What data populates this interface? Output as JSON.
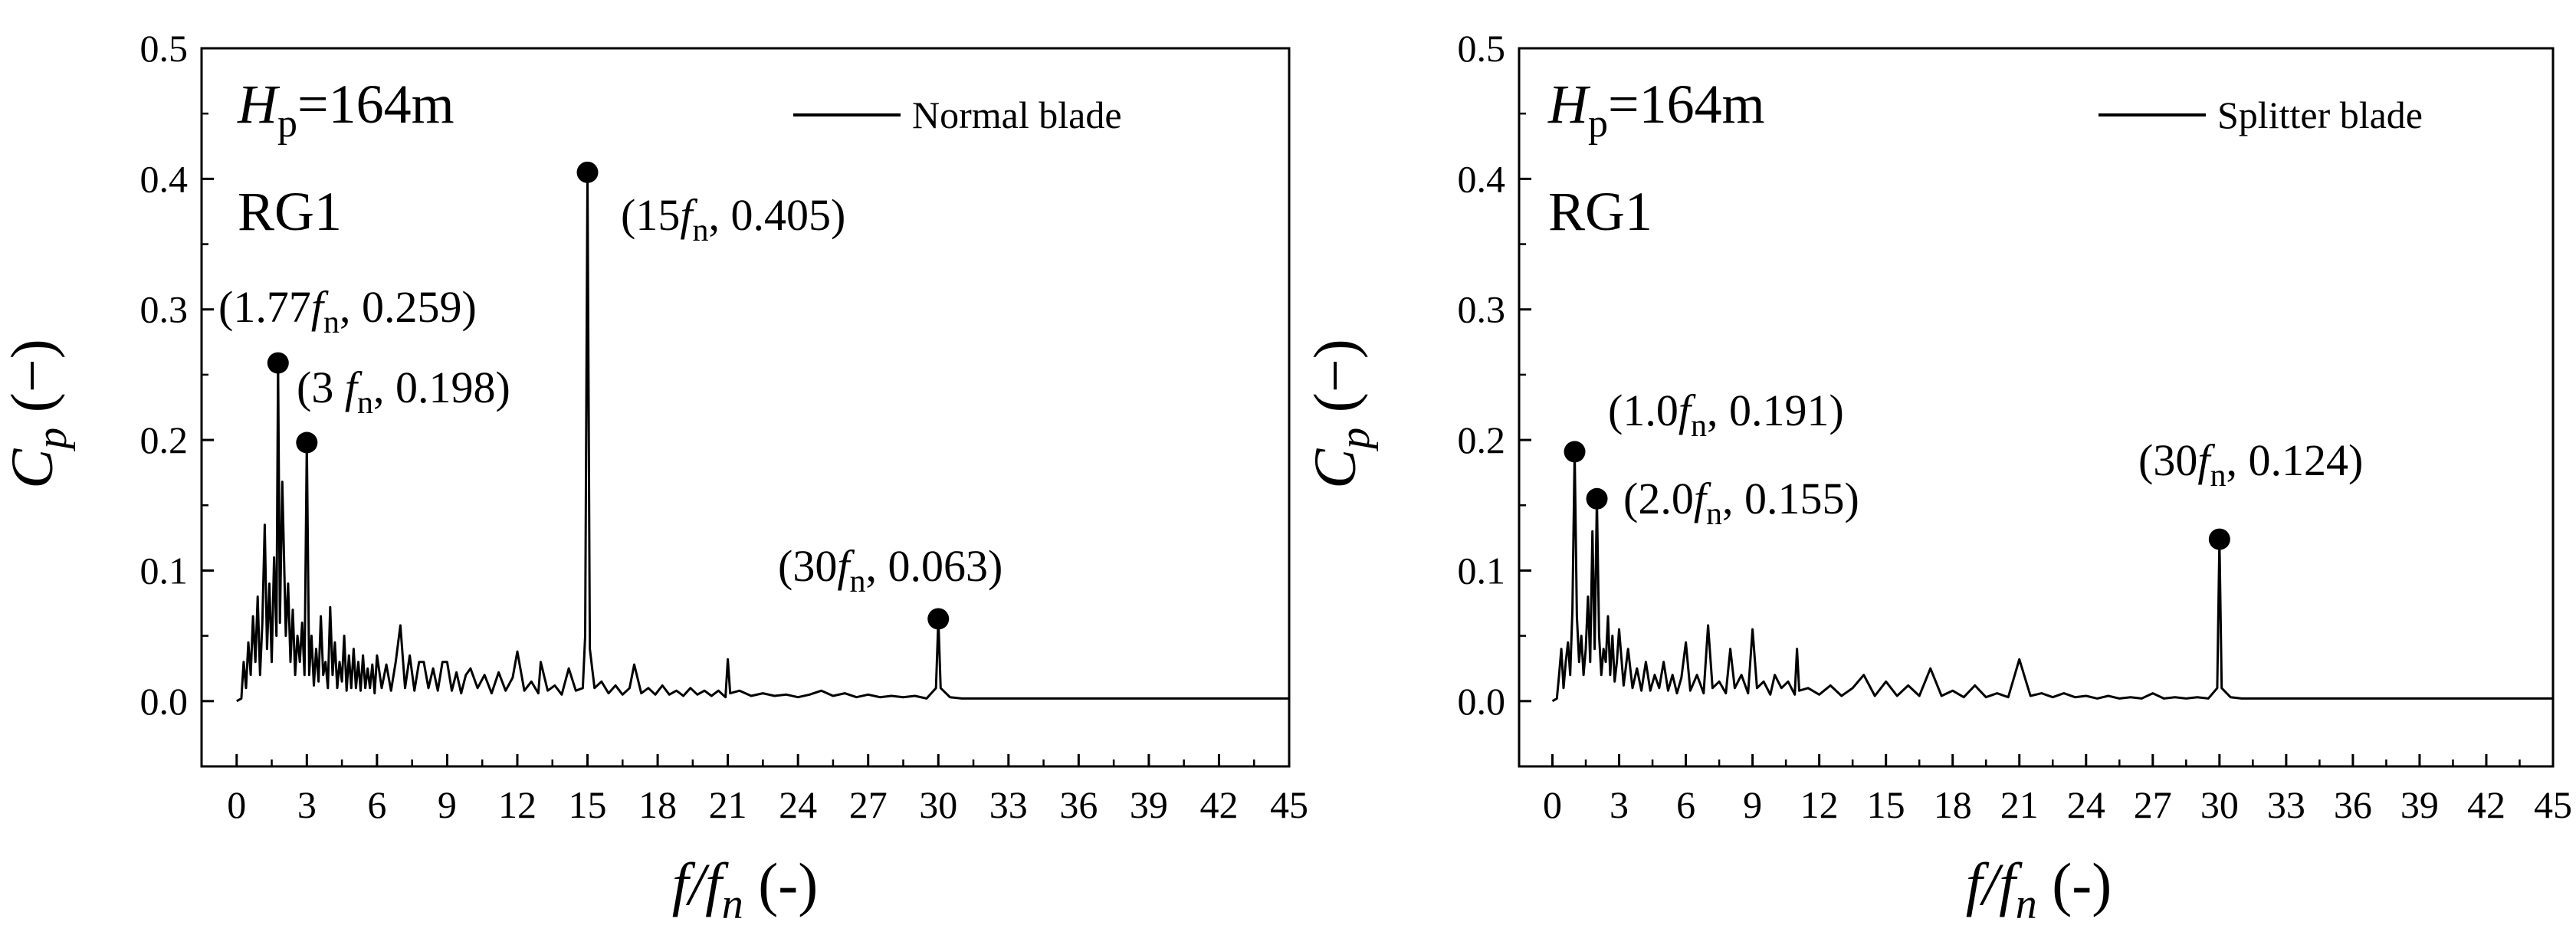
{
  "chart_data": [
    {
      "type": "line",
      "panel": "left",
      "xlim": [
        -1.5,
        45
      ],
      "ylim": [
        -0.05,
        0.5
      ],
      "xticks": [
        0,
        3,
        6,
        9,
        12,
        15,
        18,
        21,
        24,
        27,
        30,
        33,
        36,
        39,
        42,
        45
      ],
      "xtick_labels": [
        "0",
        "3",
        "6",
        "9",
        "12",
        "15",
        "18",
        "21",
        "24",
        "27",
        "30",
        "33",
        "36",
        "39",
        "42",
        "45"
      ],
      "yticks": [
        0.0,
        0.1,
        0.2,
        0.3,
        0.4,
        0.5
      ],
      "ytick_labels": [
        "0.0",
        "0.1",
        "0.2",
        "0.3",
        "0.4",
        "0.5"
      ],
      "xlabel": {
        "main": "f/f",
        "sub": "n",
        "unit": " (-)"
      },
      "ylabel": {
        "main": "C",
        "sub": "p",
        "unit": "(−)"
      },
      "head_label": {
        "main": "H",
        "sub": "p",
        "rest": "=164m"
      },
      "tag_label": "RG1",
      "legend": {
        "label": "Normal blade",
        "position": "top-right"
      },
      "series": [
        {
          "name": "Normal blade",
          "color": "#000000",
          "x": [
            0,
            0.2,
            0.3,
            0.4,
            0.5,
            0.6,
            0.7,
            0.8,
            0.9,
            1.0,
            1.1,
            1.2,
            1.3,
            1.4,
            1.5,
            1.6,
            1.7,
            1.77,
            1.85,
            1.95,
            2.0,
            2.1,
            2.2,
            2.3,
            2.4,
            2.5,
            2.6,
            2.7,
            2.8,
            2.9,
            3.0,
            3.1,
            3.2,
            3.3,
            3.4,
            3.5,
            3.6,
            3.7,
            3.8,
            3.9,
            4.0,
            4.1,
            4.2,
            4.3,
            4.4,
            4.5,
            4.6,
            4.7,
            4.8,
            4.9,
            5.0,
            5.1,
            5.2,
            5.3,
            5.4,
            5.5,
            5.6,
            5.7,
            5.8,
            5.9,
            6.0,
            6.2,
            6.4,
            6.6,
            6.8,
            7.0,
            7.2,
            7.4,
            7.6,
            7.8,
            8.0,
            8.2,
            8.4,
            8.6,
            8.8,
            9.0,
            9.2,
            9.4,
            9.6,
            9.8,
            10.0,
            10.3,
            10.6,
            10.9,
            11.2,
            11.5,
            11.8,
            12.0,
            12.3,
            12.6,
            12.9,
            13.0,
            13.3,
            13.6,
            13.9,
            14.2,
            14.5,
            14.8,
            14.9,
            15.0,
            15.1,
            15.3,
            15.6,
            15.9,
            16.2,
            16.5,
            16.8,
            17.0,
            17.3,
            17.6,
            17.9,
            18.2,
            18.5,
            18.8,
            19.1,
            19.4,
            19.7,
            20.0,
            20.3,
            20.6,
            20.9,
            21.0,
            21.1,
            21.5,
            22.0,
            22.5,
            23.0,
            23.5,
            24.0,
            24.5,
            25.0,
            25.5,
            26.0,
            26.5,
            27.0,
            27.5,
            28.0,
            28.5,
            29.0,
            29.5,
            29.9,
            30.0,
            30.1,
            30.5,
            31.0,
            32.0,
            33.0,
            34.0,
            35.0,
            36.0,
            37.0,
            38.0,
            39.0,
            40.0,
            41.0,
            42.0,
            43.0,
            44.0,
            45.0
          ],
          "y": [
            0.0,
            0.002,
            0.03,
            0.01,
            0.045,
            0.02,
            0.065,
            0.03,
            0.08,
            0.02,
            0.06,
            0.135,
            0.04,
            0.09,
            0.03,
            0.11,
            0.05,
            0.259,
            0.06,
            0.168,
            0.13,
            0.05,
            0.09,
            0.03,
            0.07,
            0.02,
            0.05,
            0.03,
            0.06,
            0.02,
            0.198,
            0.02,
            0.05,
            0.012,
            0.04,
            0.015,
            0.065,
            0.02,
            0.03,
            0.01,
            0.072,
            0.02,
            0.045,
            0.01,
            0.03,
            0.015,
            0.05,
            0.008,
            0.035,
            0.01,
            0.04,
            0.01,
            0.03,
            0.008,
            0.035,
            0.01,
            0.025,
            0.01,
            0.028,
            0.006,
            0.035,
            0.01,
            0.028,
            0.008,
            0.03,
            0.058,
            0.01,
            0.035,
            0.008,
            0.03,
            0.03,
            0.01,
            0.025,
            0.008,
            0.03,
            0.03,
            0.008,
            0.022,
            0.006,
            0.02,
            0.025,
            0.01,
            0.02,
            0.006,
            0.022,
            0.008,
            0.018,
            0.038,
            0.008,
            0.015,
            0.006,
            0.03,
            0.008,
            0.012,
            0.005,
            0.025,
            0.008,
            0.01,
            0.05,
            0.405,
            0.04,
            0.01,
            0.015,
            0.006,
            0.012,
            0.005,
            0.01,
            0.028,
            0.006,
            0.01,
            0.005,
            0.012,
            0.005,
            0.008,
            0.004,
            0.01,
            0.005,
            0.008,
            0.004,
            0.008,
            0.003,
            0.032,
            0.006,
            0.008,
            0.004,
            0.006,
            0.004,
            0.005,
            0.003,
            0.005,
            0.008,
            0.004,
            0.006,
            0.003,
            0.005,
            0.003,
            0.004,
            0.003,
            0.004,
            0.002,
            0.01,
            0.063,
            0.01,
            0.003,
            0.002,
            0.002,
            0.002,
            0.002,
            0.002,
            0.002,
            0.002,
            0.002,
            0.002,
            0.002,
            0.002,
            0.002,
            0.002,
            0.002,
            0.002
          ]
        }
      ],
      "markers": [
        {
          "x": 1.77,
          "y": 0.259,
          "label_main": "(1.77",
          "label_sym": "f",
          "label_sub": "n",
          "label_rest": ", 0.259)"
        },
        {
          "x": 3.0,
          "y": 0.198,
          "label_main": "(3 ",
          "label_sym": "f",
          "label_sub": "n",
          "label_rest": ", 0.198)"
        },
        {
          "x": 15.0,
          "y": 0.405,
          "label_main": "(15",
          "label_sym": "f",
          "label_sub": "n",
          "label_rest": ", 0.405)"
        },
        {
          "x": 30.0,
          "y": 0.063,
          "label_main": "(30",
          "label_sym": "f",
          "label_sub": "n",
          "label_rest": ", 0.063)"
        }
      ]
    },
    {
      "type": "line",
      "panel": "right",
      "xlim": [
        -1.5,
        45
      ],
      "ylim": [
        -0.05,
        0.5
      ],
      "xticks": [
        0,
        3,
        6,
        9,
        12,
        15,
        18,
        21,
        24,
        27,
        30,
        33,
        36,
        39,
        42,
        45
      ],
      "xtick_labels": [
        "0",
        "3",
        "6",
        "9",
        "12",
        "15",
        "18",
        "21",
        "24",
        "27",
        "30",
        "33",
        "36",
        "39",
        "42",
        "45"
      ],
      "yticks": [
        0.0,
        0.1,
        0.2,
        0.3,
        0.4,
        0.5
      ],
      "ytick_labels": [
        "0.0",
        "0.1",
        "0.2",
        "0.3",
        "0.4",
        "0.5"
      ],
      "xlabel": {
        "main": "f/f",
        "sub": "n",
        "unit": " (-)"
      },
      "ylabel": {
        "main": "C",
        "sub": "p",
        "unit": "(−)"
      },
      "head_label": {
        "main": "H",
        "sub": "p",
        "rest": "=164m"
      },
      "tag_label": "RG1",
      "legend": {
        "label": "Splitter blade",
        "position": "top-right"
      },
      "series": [
        {
          "name": "Splitter blade",
          "color": "#000000",
          "x": [
            0,
            0.2,
            0.3,
            0.4,
            0.5,
            0.6,
            0.7,
            0.8,
            0.9,
            1.0,
            1.1,
            1.2,
            1.3,
            1.4,
            1.5,
            1.6,
            1.7,
            1.8,
            1.9,
            2.0,
            2.1,
            2.2,
            2.3,
            2.4,
            2.5,
            2.6,
            2.7,
            2.8,
            2.9,
            3.0,
            3.2,
            3.4,
            3.6,
            3.8,
            4.0,
            4.2,
            4.4,
            4.6,
            4.8,
            5.0,
            5.2,
            5.4,
            5.6,
            5.8,
            6.0,
            6.2,
            6.5,
            6.8,
            7.0,
            7.2,
            7.5,
            7.8,
            8.0,
            8.2,
            8.5,
            8.8,
            9.0,
            9.2,
            9.5,
            9.8,
            10.0,
            10.3,
            10.6,
            10.9,
            11.0,
            11.1,
            11.5,
            12.0,
            12.5,
            13.0,
            13.5,
            14.0,
            14.5,
            15.0,
            15.5,
            16.0,
            16.5,
            17.0,
            17.5,
            18.0,
            18.5,
            19.0,
            19.5,
            20.0,
            20.5,
            21.0,
            21.5,
            22.0,
            22.5,
            23.0,
            23.5,
            24.0,
            24.5,
            25.0,
            25.5,
            26.0,
            26.5,
            27.0,
            27.5,
            28.0,
            28.5,
            29.0,
            29.5,
            29.9,
            30.0,
            30.1,
            30.5,
            31.0,
            32.0,
            33.0,
            34.0,
            35.0,
            36.0,
            37.0,
            38.0,
            39.0,
            40.0,
            41.0,
            42.0,
            43.0,
            44.0,
            45.0
          ],
          "y": [
            0.0,
            0.002,
            0.02,
            0.04,
            0.01,
            0.03,
            0.045,
            0.02,
            0.07,
            0.191,
            0.065,
            0.03,
            0.05,
            0.02,
            0.04,
            0.08,
            0.03,
            0.13,
            0.04,
            0.155,
            0.05,
            0.02,
            0.04,
            0.03,
            0.065,
            0.02,
            0.05,
            0.015,
            0.03,
            0.055,
            0.012,
            0.04,
            0.01,
            0.025,
            0.008,
            0.03,
            0.008,
            0.02,
            0.01,
            0.03,
            0.008,
            0.02,
            0.006,
            0.018,
            0.045,
            0.008,
            0.02,
            0.006,
            0.058,
            0.01,
            0.015,
            0.006,
            0.04,
            0.01,
            0.02,
            0.006,
            0.055,
            0.01,
            0.015,
            0.005,
            0.02,
            0.01,
            0.015,
            0.005,
            0.04,
            0.008,
            0.01,
            0.005,
            0.012,
            0.004,
            0.01,
            0.02,
            0.004,
            0.015,
            0.004,
            0.012,
            0.004,
            0.025,
            0.004,
            0.008,
            0.003,
            0.012,
            0.003,
            0.006,
            0.003,
            0.032,
            0.004,
            0.006,
            0.003,
            0.006,
            0.003,
            0.004,
            0.002,
            0.004,
            0.002,
            0.003,
            0.002,
            0.006,
            0.002,
            0.003,
            0.002,
            0.003,
            0.002,
            0.01,
            0.124,
            0.01,
            0.003,
            0.002,
            0.002,
            0.002,
            0.002,
            0.002,
            0.002,
            0.002,
            0.002,
            0.002,
            0.002,
            0.002,
            0.002,
            0.002,
            0.002,
            0.002
          ]
        }
      ],
      "markers": [
        {
          "x": 1.0,
          "y": 0.191,
          "label_main": "(1.0",
          "label_sym": "f",
          "label_sub": "n",
          "label_rest": ", 0.191)"
        },
        {
          "x": 2.0,
          "y": 0.155,
          "label_main": "(2.0",
          "label_sym": "f",
          "label_sub": "n",
          "label_rest": ", 0.155)"
        },
        {
          "x": 30.0,
          "y": 0.124,
          "label_main": "(30",
          "label_sym": "f",
          "label_sub": "n",
          "label_rest": ", 0.124)"
        }
      ]
    }
  ]
}
